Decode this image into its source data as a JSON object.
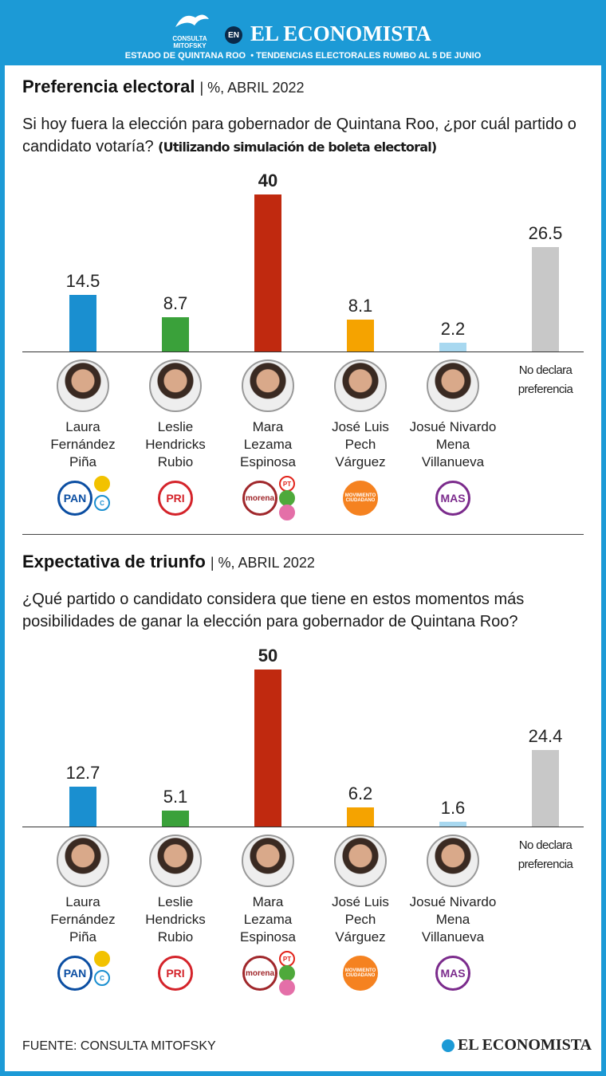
{
  "header": {
    "brand": "CONSULTA MITOFSKY",
    "en": "EN",
    "title": "EL ECONOMISTA",
    "subtitle": "ESTADO DE QUINTANA ROO  • TENDENCIAS ELECTORALES RUMBO AL 5 DE JUNIO"
  },
  "parties": [
    [
      {
        "label": "PAN",
        "color": "#0b4ea2"
      },
      {
        "color": "#f2c200"
      },
      {
        "label": "C",
        "color": "#1a8fd0"
      }
    ],
    [
      {
        "label": "PRI",
        "color": "#d4232a"
      }
    ],
    [
      {
        "label": "morena",
        "color": "#a0272b"
      },
      {
        "label": "PT",
        "color": "#e2231a"
      },
      {
        "color": "#4ea93b"
      },
      {
        "color": "#e46fa8"
      }
    ],
    [
      {
        "label": "MOVIMIENTO CIUDADANO",
        "color": "#f58220"
      }
    ],
    [
      {
        "label": "MAS",
        "color": "#7b2b8c"
      }
    ]
  ],
  "chart_data": [
    {
      "type": "bar",
      "title": "Preferencia electoral",
      "subtitle": "| %, ABRIL 2022",
      "question": "Si hoy fuera la elección para gobernador de Quintana Roo, ¿por cuál partido o candidato votaría?",
      "note": "(Utilizando simulación de boleta electoral)",
      "categories": [
        "Laura\nFernández\nPiña",
        "Leslie\nHendricks\nRubio",
        "Mara\nLezama\nEspinosa",
        "José Luis\nPech\nVárguez",
        "Josué Nivardo\nMena\nVillanueva",
        "No declara\npreferencia"
      ],
      "values": [
        14.5,
        8.7,
        40,
        8.1,
        2.2,
        26.5
      ],
      "colors": [
        "#1a8fd0",
        "#3aa13a",
        "#c0290f",
        "#f5a300",
        "#a8d8f0",
        "#c8c8c8"
      ]
    },
    {
      "type": "bar",
      "title": "Expectativa de triunfo",
      "subtitle": "| %, ABRIL 2022",
      "question": "¿Qué partido o candidato considera que tiene en estos momentos más posibilidades de ganar la elección para gobernador de Quintana Roo?",
      "categories": [
        "Laura\nFernández\nPiña",
        "Leslie\nHendricks\nRubio",
        "Mara\nLezama\nEspinosa",
        "José Luis\nPech\nVárguez",
        "Josué Nivardo\nMena\nVillanueva",
        "No declara\npreferencia"
      ],
      "values": [
        12.7,
        5.1,
        50,
        6.2,
        1.6,
        24.4
      ],
      "colors": [
        "#1a8fd0",
        "#3aa13a",
        "#c0290f",
        "#f5a300",
        "#a8d8f0",
        "#c8c8c8"
      ]
    }
  ],
  "footer": {
    "source": "FUENTE: CONSULTA MITOFSKY",
    "brand": "EL ECONOMISTA"
  }
}
